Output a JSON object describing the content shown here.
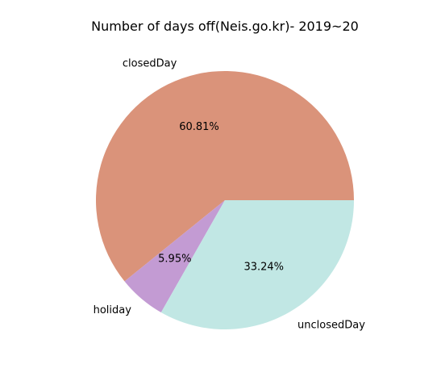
{
  "chart_data": {
    "type": "pie",
    "title": "Number of days off(Neis.go.kr)- 2019~20",
    "slices": [
      {
        "label": "closedDay",
        "value": 60.81,
        "pct_label": "60.81%",
        "color": "#da937a"
      },
      {
        "label": "holiday",
        "value": 5.95,
        "pct_label": "5.95%",
        "color": "#c39bd3"
      },
      {
        "label": "unclosedDay",
        "value": 33.24,
        "pct_label": "33.24%",
        "color": "#c1e7e4"
      }
    ]
  }
}
